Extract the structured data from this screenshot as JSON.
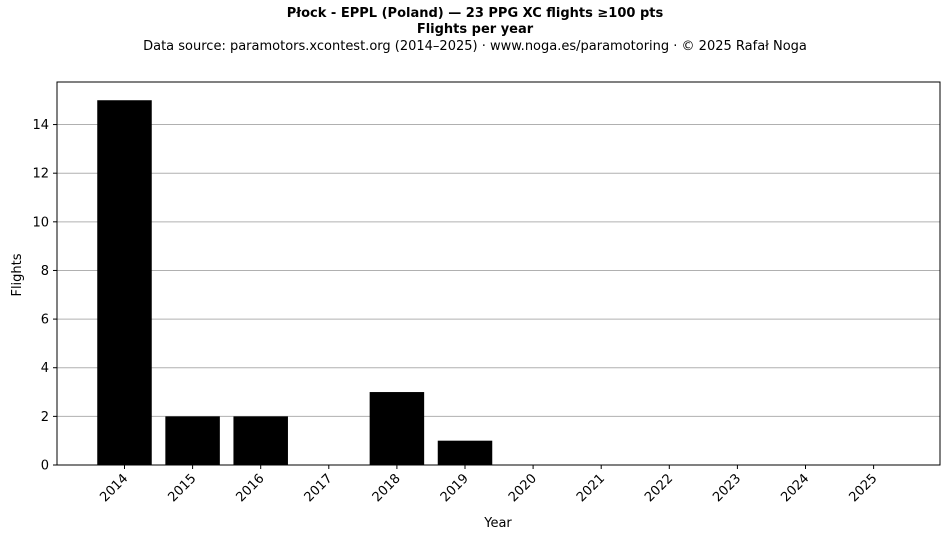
{
  "chart_data": {
    "type": "bar",
    "title": "Płock - EPPL (Poland)  —  23 PPG XC flights ≥100 pts",
    "subtitle": "Flights per year",
    "source": "Data source: paramotors.xcontest.org (2014–2025)  ·  www.noga.es/paramotoring  ·  © 2025 Rafał Noga",
    "xlabel": "Year",
    "ylabel": "Flights",
    "categories": [
      "2014",
      "2015",
      "2016",
      "2017",
      "2018",
      "2019",
      "2020",
      "2021",
      "2022",
      "2023",
      "2024",
      "2025"
    ],
    "values": [
      15,
      2,
      2,
      0,
      3,
      1,
      0,
      0,
      0,
      0,
      0,
      0
    ],
    "ylim": [
      0,
      15.75
    ],
    "yticks": [
      0,
      2,
      4,
      6,
      8,
      10,
      12,
      14
    ],
    "grid": "y",
    "bar_color": "#000000",
    "grid_color": "#b0b0b0"
  }
}
